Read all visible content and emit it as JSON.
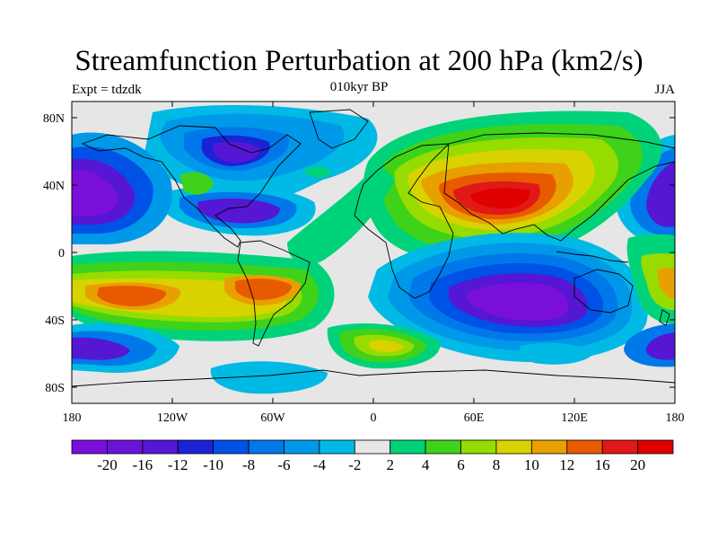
{
  "header": {
    "title": "Streamfunction Perturbation at 200 hPa (km2/s)",
    "left_subtitle": "Expt = tdzdk",
    "center_subtitle": "010kyr BP",
    "right_subtitle": "JJA"
  },
  "axes": {
    "lat_ticks": [
      "80N",
      "40N",
      "0",
      "40S",
      "80S"
    ],
    "lon_ticks": [
      "180",
      "120W",
      "60W",
      "0",
      "60E",
      "120E",
      "180"
    ]
  },
  "colorbar": {
    "labels": [
      "-20",
      "-16",
      "-12",
      "-10",
      "-8",
      "-6",
      "-4",
      "-2",
      "2",
      "4",
      "6",
      "8",
      "10",
      "12",
      "16",
      "20"
    ],
    "colors": [
      "#7a0fdc",
      "#6a14d8",
      "#5517d4",
      "#1c22d6",
      "#0051e6",
      "#0078ea",
      "#0098e8",
      "#00b9e4",
      "#e6e6e6",
      "#00d27a",
      "#3ed21a",
      "#96dc00",
      "#d8d200",
      "#e8a000",
      "#e85a00",
      "#e01818",
      "#e00000"
    ]
  }
}
